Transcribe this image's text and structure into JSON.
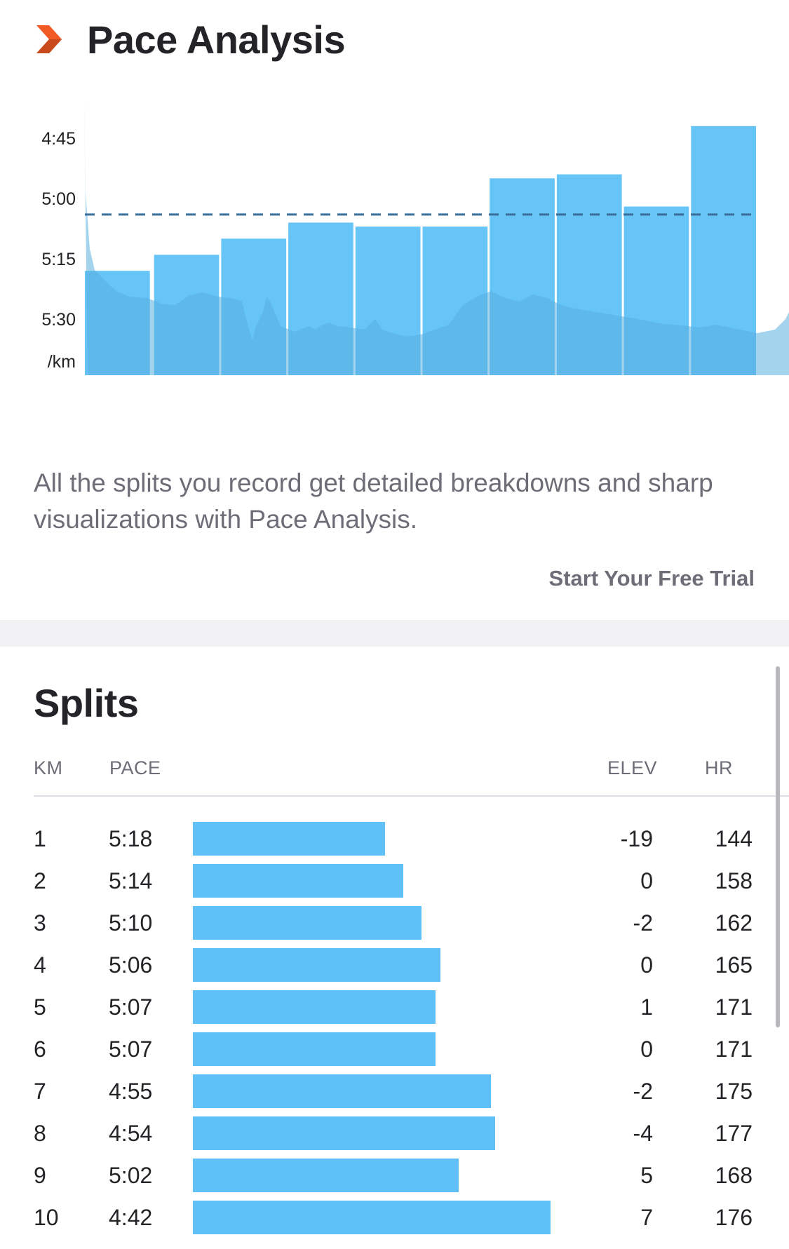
{
  "pace_analysis": {
    "title": "Pace Analysis",
    "description": "All the splits you record get detailed breakdowns and sharp visualizations with Pace Analysis.",
    "cta_label": "Start Your Free Trial",
    "icon": "chevron-right-icon",
    "accent_color": "#f15a24"
  },
  "chart_data": {
    "type": "bar",
    "categories": [
      "1",
      "2",
      "3",
      "4",
      "5",
      "6",
      "7",
      "8",
      "9",
      "10"
    ],
    "values": [
      "5:18",
      "5:14",
      "5:10",
      "5:06",
      "5:07",
      "5:07",
      "4:55",
      "4:54",
      "5:02",
      "4:42"
    ],
    "values_seconds_per_km": [
      318,
      314,
      310,
      306,
      307,
      307,
      295,
      294,
      302,
      282
    ],
    "y_ticks": [
      "4:45",
      "5:00",
      "5:15",
      "5:30",
      "/km"
    ],
    "y_axis_inverted": true,
    "average_line_pace": "5:04",
    "background_area": "elevation",
    "grid": false,
    "bar_color": "#5fc1f7",
    "area_color": "#5aafe0",
    "average_line_color": "#3a6f99"
  },
  "splits": {
    "title": "Splits",
    "columns": {
      "km": "KM",
      "pace": "PACE",
      "elev": "ELEV",
      "hr": "HR"
    },
    "rows": [
      {
        "km": "1",
        "pace": "5:18",
        "pace_seconds": 318,
        "elev": "-19",
        "hr": "144"
      },
      {
        "km": "2",
        "pace": "5:14",
        "pace_seconds": 314,
        "elev": "0",
        "hr": "158"
      },
      {
        "km": "3",
        "pace": "5:10",
        "pace_seconds": 310,
        "elev": "-2",
        "hr": "162"
      },
      {
        "km": "4",
        "pace": "5:06",
        "pace_seconds": 306,
        "elev": "0",
        "hr": "165"
      },
      {
        "km": "5",
        "pace": "5:07",
        "pace_seconds": 307,
        "elev": "1",
        "hr": "171"
      },
      {
        "km": "6",
        "pace": "5:07",
        "pace_seconds": 307,
        "elev": "0",
        "hr": "171"
      },
      {
        "km": "7",
        "pace": "4:55",
        "pace_seconds": 295,
        "elev": "-2",
        "hr": "175"
      },
      {
        "km": "8",
        "pace": "4:54",
        "pace_seconds": 294,
        "elev": "-4",
        "hr": "177"
      },
      {
        "km": "9",
        "pace": "5:02",
        "pace_seconds": 302,
        "elev": "5",
        "hr": "168"
      },
      {
        "km": "10",
        "pace": "4:42",
        "pace_seconds": 282,
        "elev": "7",
        "hr": "176"
      }
    ],
    "bar_color": "#5fc1f7"
  }
}
